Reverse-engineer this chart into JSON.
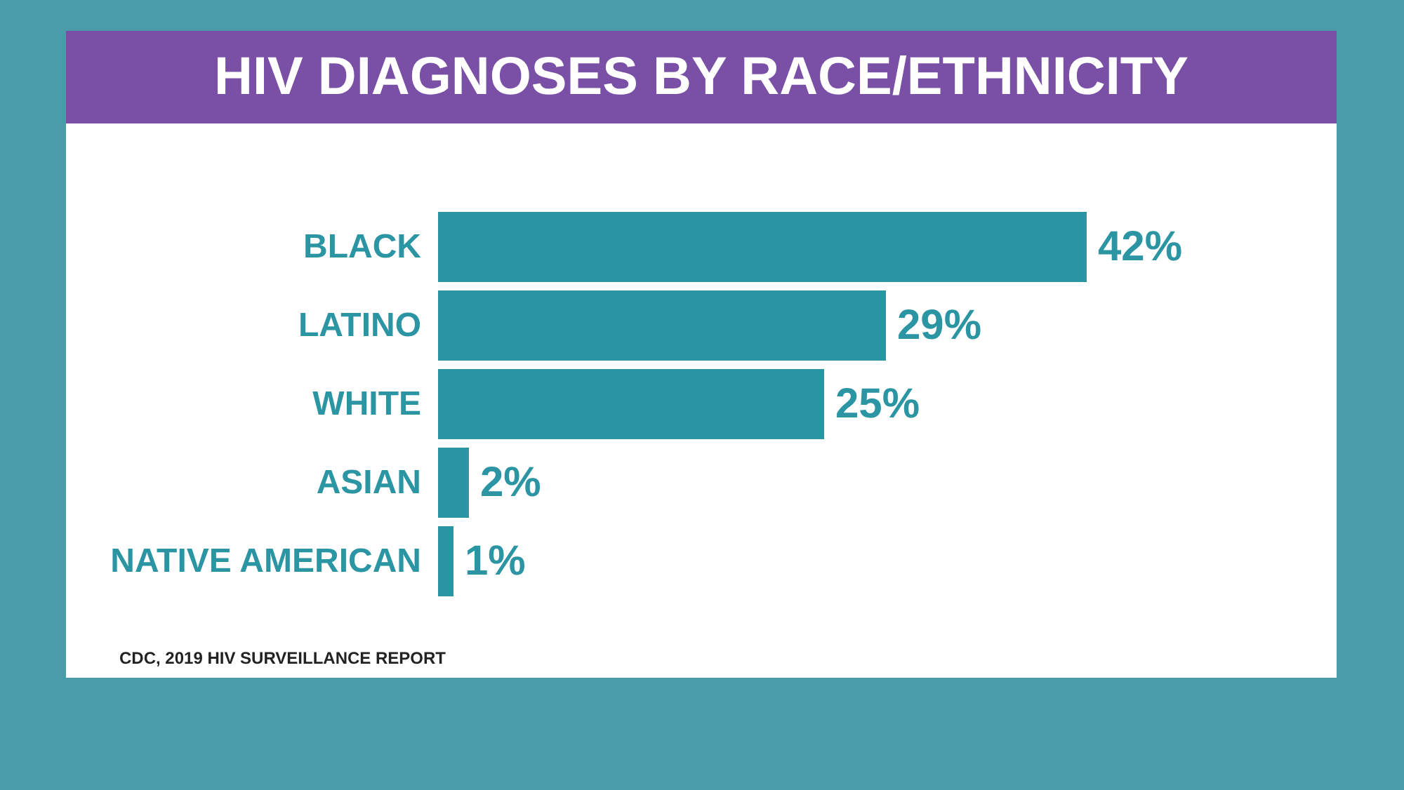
{
  "chart_data": {
    "type": "bar",
    "orientation": "horizontal",
    "title": "HIV DIAGNOSES BY RACE/ETHNICITY",
    "categories": [
      "BLACK",
      "LATINO",
      "WHITE",
      "ASIAN",
      "NATIVE AMERICAN"
    ],
    "values": [
      42,
      29,
      25,
      2,
      1
    ],
    "value_labels": [
      "42%",
      "29%",
      "25%",
      "2%",
      "1%"
    ],
    "color": "#2b95a4",
    "annotations": [
      "CDC, 2019 HIV SURVEILLANCE REPORT"
    ]
  }
}
